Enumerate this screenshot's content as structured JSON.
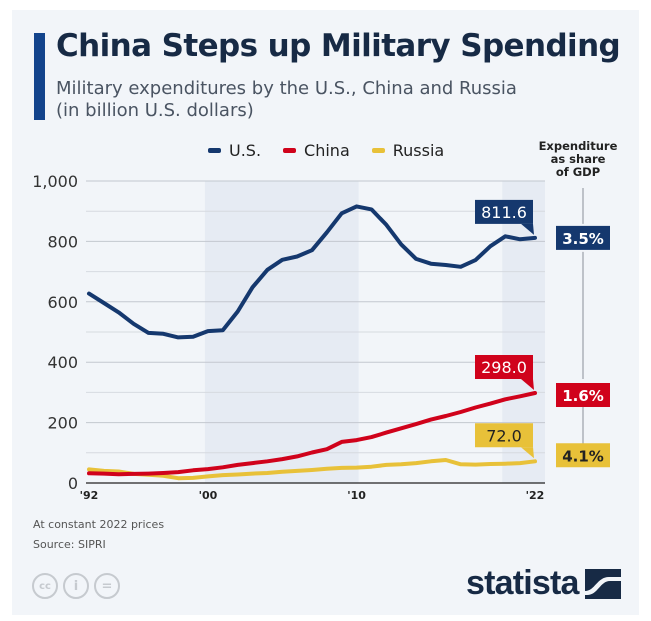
{
  "header": {
    "title": "China Steps up Military Spending",
    "subtitle_line1": "Military expenditures by the U.S., China and Russia",
    "subtitle_line2": "(in billion U.S. dollars)"
  },
  "gdp_header": {
    "line1": "Expenditure",
    "line2": "as share",
    "line3": "of GDP"
  },
  "chart_data": {
    "type": "line",
    "title": "China Steps up Military Spending",
    "subtitle": "Military expenditures by the U.S., China and Russia (in billion U.S. dollars)",
    "xlabel": "",
    "ylabel": "",
    "ylim": [
      0,
      1000
    ],
    "yticks": [
      0,
      200,
      400,
      600,
      800,
      1000
    ],
    "ytick_labels": [
      "0",
      "200",
      "400",
      "600",
      "800",
      "1,000"
    ],
    "xtick_labels": [
      {
        "year": 1992,
        "label": "'92"
      },
      {
        "year": 2000,
        "label": "'00"
      },
      {
        "year": 2010,
        "label": "'10"
      },
      {
        "year": 2022,
        "label": "'22"
      }
    ],
    "grid": true,
    "legend_position": "top",
    "shaded_ranges": [
      [
        2000,
        2010
      ],
      [
        2020,
        2022
      ]
    ],
    "x": [
      1992,
      1993,
      1994,
      1995,
      1996,
      1997,
      1998,
      1999,
      2000,
      2001,
      2002,
      2003,
      2004,
      2005,
      2006,
      2007,
      2008,
      2009,
      2010,
      2011,
      2012,
      2013,
      2014,
      2015,
      2016,
      2017,
      2018,
      2019,
      2020,
      2021,
      2022
    ],
    "series": [
      {
        "name": "U.S.",
        "color": "#15386e",
        "values": [
          627,
          596,
          565,
          527,
          497,
          494,
          482,
          484,
          503,
          506,
          568,
          648,
          706,
          739,
          750,
          771,
          830,
          893,
          916,
          906,
          855,
          790,
          742,
          726,
          722,
          716,
          738,
          784,
          817,
          807,
          811.6
        ],
        "end_label": "811.6",
        "gdp_share": "3.5%"
      },
      {
        "name": "China",
        "color": "#d0021b",
        "values": [
          32,
          31,
          29,
          30,
          31,
          33,
          36,
          42,
          46,
          52,
          60,
          66,
          72,
          79,
          88,
          101,
          112,
          136,
          142,
          152,
          167,
          181,
          195,
          210,
          222,
          235,
          250,
          263,
          277,
          287,
          298.0
        ],
        "end_label": "298.0",
        "gdp_share": "1.6%"
      },
      {
        "name": "Russia",
        "color": "#e8c139",
        "values": [
          45,
          40,
          38,
          30,
          27,
          24,
          16,
          17,
          22,
          26,
          28,
          31,
          33,
          37,
          40,
          43,
          47,
          50,
          51,
          54,
          60,
          62,
          66,
          72,
          76,
          62,
          61,
          63,
          64,
          66,
          72.0
        ],
        "end_label": "72.0",
        "gdp_share": "4.1%"
      }
    ]
  },
  "footer": {
    "note": "At constant 2022 prices",
    "source": "Source: SIPRI",
    "cc_icons": [
      "cc-icon",
      "attribution-icon",
      "no-derivatives-icon"
    ],
    "cc_glyphs": [
      "cc",
      "i",
      "="
    ],
    "logo_text": "statista"
  }
}
